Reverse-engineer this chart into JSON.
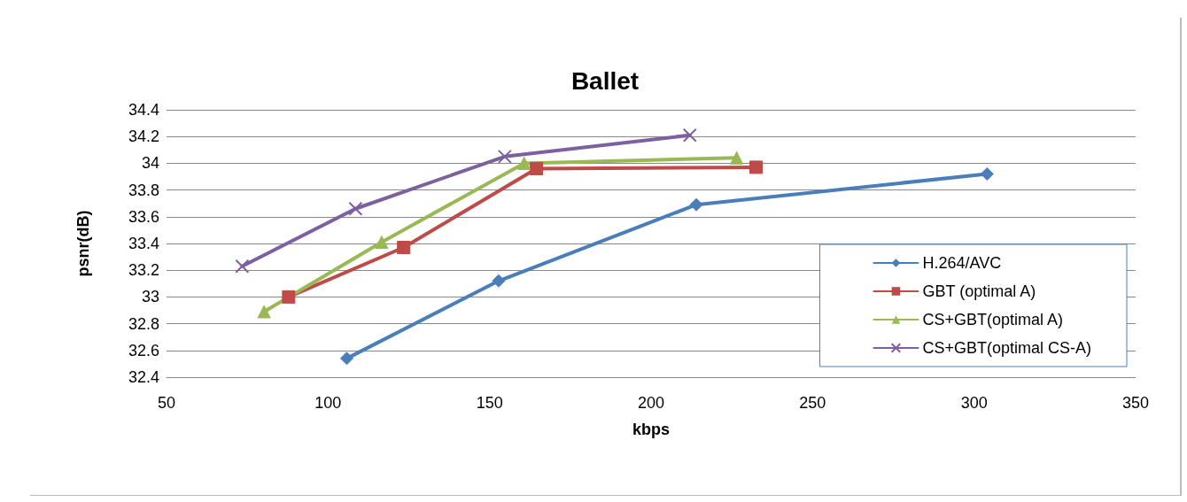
{
  "chart_data": {
    "type": "line",
    "title": "Ballet",
    "xlabel": "kbps",
    "ylabel": "psnr(dB)",
    "xlim": [
      50,
      350
    ],
    "xticks": [
      50,
      100,
      150,
      200,
      250,
      300,
      350
    ],
    "ylim": [
      32.4,
      34.4
    ],
    "yticks": [
      32.4,
      32.6,
      32.8,
      33,
      33.2,
      33.4,
      33.6,
      33.8,
      34,
      34.2,
      34.4
    ],
    "grid": "y",
    "legend": "bottom right",
    "line_style": "solid",
    "series": [
      {
        "name": "H.264/AVC",
        "color": "#4a7ebb",
        "marker": "diamond",
        "x": [
          105.8,
          152.8,
          214,
          304
        ],
        "values": [
          32.54,
          33.12,
          33.69,
          33.92
        ]
      },
      {
        "name": "GBT (optimal A)",
        "color": "#be4b48",
        "marker": "square",
        "x": [
          87.8,
          123.4,
          164.5,
          232.5
        ],
        "values": [
          33.0,
          33.37,
          33.96,
          33.97
        ]
      },
      {
        "name": "CS+GBT(optimal A)",
        "color": "#98b954",
        "marker": "triangle",
        "x": [
          80.2,
          116.6,
          160.7,
          226.5
        ],
        "values": [
          32.89,
          33.41,
          34.0,
          34.04
        ]
      },
      {
        "name": "CS+GBT(optimal CS-A)",
        "color": "#7d60a0",
        "marker": "cross",
        "x": [
          73.4,
          108.5,
          154.7,
          212
        ],
        "values": [
          33.23,
          33.66,
          34.05,
          34.21
        ]
      }
    ]
  }
}
